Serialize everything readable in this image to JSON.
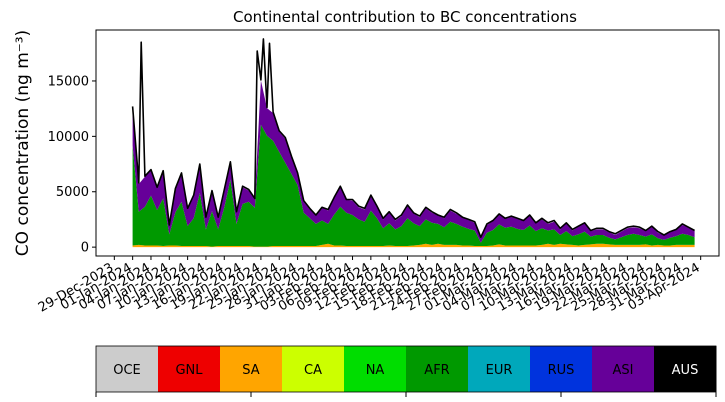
{
  "chart_data": {
    "type": "area",
    "title": "Continental contribution to BC concentrations",
    "ylabel": "CO concentration (ng m⁻³)",
    "xlabel": "",
    "ylim": [
      -800,
      19600
    ],
    "yticks": [
      0,
      5000,
      10000,
      15000
    ],
    "ytick_labels": [
      "0",
      "5000",
      "10000",
      "15000"
    ],
    "grid": false,
    "x_start": "2023-12-29",
    "x_end": "2024-04-03",
    "xtick_labels": [
      "29-Dec-2023",
      "01-Jan-2024",
      "04-Jan-2024",
      "07-Jan-2024",
      "10-Jan-2024",
      "13-Jan-2024",
      "16-Jan-2024",
      "19-Jan-2024",
      "22-Jan-2024",
      "25-Jan-2024",
      "28-Jan-2024",
      "31-Jan-2024",
      "03-Feb-2024",
      "06-Feb-2024",
      "09-Feb-2024",
      "12-Feb-2024",
      "15-Feb-2024",
      "18-Feb-2024",
      "21-Feb-2024",
      "24-Feb-2024",
      "27-Feb-2024",
      "01-Mar-2024",
      "04-Mar-2024",
      "07-Mar-2024",
      "10-Mar-2024",
      "13-Mar-2024",
      "16-Mar-2024",
      "19-Mar-2024",
      "22-Mar-2024",
      "25-Mar-2024",
      "28-Mar-2024",
      "31-Mar-2024",
      "03-Apr-2024"
    ],
    "x": [
      "2024-01-01",
      "2024-01-02",
      "2024-01-03",
      "2024-01-04",
      "2024-01-05",
      "2024-01-06",
      "2024-01-07",
      "2024-01-08",
      "2024-01-09",
      "2024-01-10",
      "2024-01-11",
      "2024-01-12",
      "2024-01-13",
      "2024-01-14",
      "2024-01-15",
      "2024-01-16",
      "2024-01-17",
      "2024-01-18",
      "2024-01-19",
      "2024-01-20",
      "2024-01-21",
      "2024-01-22",
      "2024-01-23",
      "2024-01-24",
      "2024-01-25",
      "2024-01-26",
      "2024-01-27",
      "2024-01-28",
      "2024-01-29",
      "2024-01-30",
      "2024-01-31",
      "2024-02-01",
      "2024-02-02",
      "2024-02-03",
      "2024-02-04",
      "2024-02-05",
      "2024-02-06",
      "2024-02-07",
      "2024-02-08",
      "2024-02-09",
      "2024-02-10",
      "2024-02-11",
      "2024-02-12",
      "2024-02-13",
      "2024-02-14",
      "2024-02-15",
      "2024-02-16",
      "2024-02-17",
      "2024-02-18",
      "2024-02-19",
      "2024-02-20",
      "2024-02-21",
      "2024-02-22",
      "2024-02-23",
      "2024-02-24",
      "2024-02-25",
      "2024-02-26",
      "2024-02-27",
      "2024-02-28",
      "2024-02-29",
      "2024-03-01",
      "2024-03-02",
      "2024-03-03",
      "2024-03-04",
      "2024-03-05",
      "2024-03-06",
      "2024-03-07",
      "2024-03-08",
      "2024-03-09",
      "2024-03-10",
      "2024-03-11",
      "2024-03-12",
      "2024-03-13",
      "2024-03-14",
      "2024-03-15",
      "2024-03-16",
      "2024-03-17",
      "2024-03-18",
      "2024-03-19",
      "2024-03-20",
      "2024-03-21",
      "2024-03-22",
      "2024-03-23",
      "2024-03-24",
      "2024-03-25",
      "2024-03-26",
      "2024-03-27",
      "2024-03-28",
      "2024-03-29",
      "2024-03-30",
      "2024-03-31",
      "2024-04-01",
      "2024-04-02"
    ],
    "series": [
      {
        "name": "SA",
        "color": "#ffa500",
        "values": [
          150,
          200,
          150,
          150,
          150,
          100,
          150,
          150,
          100,
          100,
          100,
          100,
          100,
          50,
          100,
          100,
          100,
          100,
          100,
          100,
          50,
          50,
          50,
          100,
          100,
          100,
          100,
          100,
          100,
          100,
          100,
          200,
          300,
          150,
          150,
          100,
          100,
          100,
          100,
          100,
          100,
          100,
          150,
          100,
          100,
          100,
          150,
          200,
          300,
          200,
          300,
          200,
          200,
          200,
          150,
          150,
          100,
          100,
          100,
          150,
          250,
          150,
          150,
          150,
          150,
          150,
          150,
          200,
          300,
          200,
          300,
          250,
          200,
          150,
          200,
          250,
          300,
          300,
          250,
          200,
          200,
          200,
          200,
          200,
          250,
          150,
          200,
          150,
          150,
          200,
          200,
          200,
          200
        ]
      },
      {
        "name": "NA",
        "color": "#00dd00",
        "values": [
          0,
          0,
          0,
          0,
          0,
          0,
          0,
          0,
          0,
          0,
          0,
          0,
          0,
          0,
          0,
          0,
          0,
          0,
          0,
          0,
          0,
          0,
          0,
          0,
          0,
          0,
          0,
          0,
          0,
          0,
          0,
          0,
          0,
          0,
          0,
          0,
          0,
          0,
          0,
          0,
          0,
          0,
          0,
          0,
          0,
          0,
          0,
          0,
          0,
          0,
          0,
          0,
          0,
          0,
          0,
          0,
          0,
          0,
          0,
          0,
          0,
          0,
          0,
          0,
          0,
          0,
          0,
          0,
          0,
          0,
          0,
          0,
          0,
          0,
          0,
          0,
          0,
          0,
          0,
          0,
          0,
          0,
          0,
          0,
          0,
          0,
          0,
          0,
          0,
          0,
          0,
          0,
          0
        ]
      },
      {
        "name": "AFR",
        "color": "#009900",
        "values": [
          9000,
          3000,
          3500,
          4500,
          3200,
          4300,
          1000,
          3000,
          4000,
          1800,
          2500,
          4800,
          1500,
          3200,
          1500,
          3500,
          6000,
          2000,
          3800,
          4000,
          3500,
          11000,
          10000,
          9500,
          8500,
          7500,
          6500,
          5500,
          3000,
          2500,
          2000,
          2200,
          1800,
          2800,
          3500,
          3000,
          2800,
          2400,
          2200,
          3200,
          2500,
          1600,
          2000,
          1500,
          1800,
          2500,
          2000,
          1700,
          2200,
          2000,
          1800,
          1600,
          2100,
          1900,
          1700,
          1500,
          1400,
          300,
          1200,
          1400,
          1800,
          1600,
          1700,
          1500,
          1400,
          1800,
          1300,
          1500,
          1200,
          1400,
          800,
          1200,
          800,
          1000,
          1200,
          700,
          800,
          800,
          600,
          500,
          700,
          900,
          1000,
          900,
          700,
          1000,
          600,
          500,
          700,
          800,
          1000,
          900,
          700
        ]
      },
      {
        "name": "ASI",
        "color": "#660099",
        "values": [
          3500,
          2500,
          2700,
          2300,
          2000,
          2500,
          800,
          2000,
          2500,
          1500,
          2000,
          2500,
          1000,
          1800,
          1000,
          1500,
          1500,
          1000,
          1500,
          1000,
          800,
          4000,
          2500,
          2500,
          1800,
          2200,
          1500,
          1000,
          1000,
          800,
          800,
          1200,
          1200,
          1500,
          1800,
          1200,
          1300,
          1100,
          1100,
          1300,
          1000,
          800,
          1000,
          800,
          900,
          1100,
          900,
          800,
          1000,
          900,
          800,
          800,
          1000,
          900,
          800,
          800,
          700,
          400,
          700,
          800,
          900,
          800,
          900,
          900,
          800,
          900,
          700,
          800,
          600,
          700,
          500,
          700,
          500,
          700,
          800,
          500,
          500,
          500,
          500,
          400,
          500,
          600,
          600,
          600,
          500,
          700,
          500,
          400,
          500,
          600,
          800,
          700,
          600
        ]
      }
    ],
    "total": {
      "name": "Total",
      "color": "#000000",
      "values": [
        12700,
        5800,
        6400,
        7000,
        5400,
        6900,
        2000,
        5300,
        6700,
        3500,
        4700,
        7500,
        2700,
        5100,
        2700,
        5200,
        7700,
        3200,
        5500,
        5200,
        4400,
        15100,
        12600,
        12200,
        10500,
        9900,
        8200,
        6700,
        4200,
        3500,
        2900,
        3600,
        3400,
        4500,
        5500,
        4300,
        4300,
        3700,
        3500,
        4700,
        3700,
        2600,
        3200,
        2500,
        2900,
        3800,
        3100,
        2800,
        3600,
        3200,
        2900,
        2700,
        3400,
        3100,
        2700,
        2500,
        2300,
        900,
        2100,
        2400,
        3000,
        2600,
        2800,
        2600,
        2400,
        2900,
        2200,
        2600,
        2200,
        2400,
        1700,
        2200,
        1600,
        1900,
        2200,
        1500,
        1700,
        1700,
        1400,
        1200,
        1500,
        1800,
        1900,
        1800,
        1500,
        1900,
        1400,
        1100,
        1400,
        1600,
        2100,
        1800,
        1500
      ]
    },
    "peaks": [
      {
        "x": "2024-01-02",
        "y": 18500
      },
      {
        "x": "2024-01-21",
        "y": 17700
      },
      {
        "x": "2024-01-22",
        "y": 18800
      },
      {
        "x": "2024-01-23",
        "y": 18400
      }
    ]
  },
  "legend": {
    "items": [
      {
        "label": "OCE",
        "color": "#cccccc",
        "text_color": "#000000"
      },
      {
        "label": "GNL",
        "color": "#ee0000",
        "text_color": "#000000"
      },
      {
        "label": "SA",
        "color": "#ffa500",
        "text_color": "#000000"
      },
      {
        "label": "CA",
        "color": "#ccff00",
        "text_color": "#000000"
      },
      {
        "label": "NA",
        "color": "#00dd00",
        "text_color": "#000000"
      },
      {
        "label": "AFR",
        "color": "#009900",
        "text_color": "#000000"
      },
      {
        "label": "EUR",
        "color": "#00a8bb",
        "text_color": "#000000"
      },
      {
        "label": "RUS",
        "color": "#0033dd",
        "text_color": "#000000"
      },
      {
        "label": "ASI",
        "color": "#660099",
        "text_color": "#000000"
      },
      {
        "label": "AUS",
        "color": "#000000",
        "text_color": "#ffffff"
      }
    ]
  }
}
